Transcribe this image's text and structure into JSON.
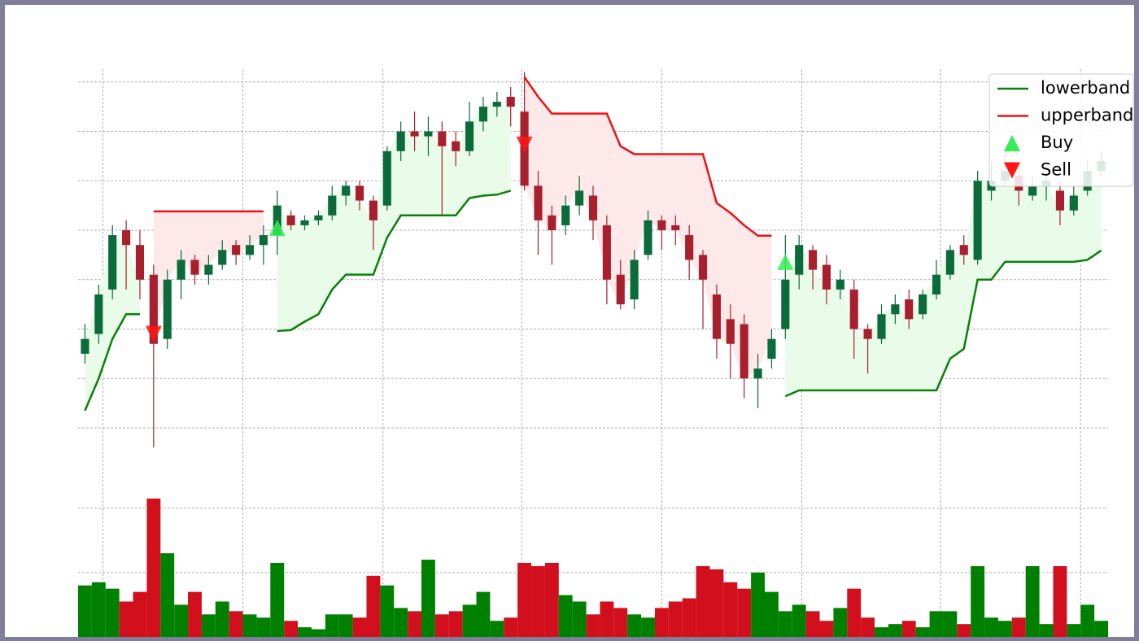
{
  "chart_data": {
    "type": "candlestick",
    "xlim": [
      -0.5,
      74.5
    ],
    "xticks": [
      1.3,
      11.5,
      21.7,
      31.8,
      42,
      52.2,
      62.3,
      72.5
    ],
    "ylim": [
      4.4,
      82.6
    ],
    "yticks": [
      10,
      20,
      30,
      40,
      50,
      60,
      70,
      80
    ],
    "grid": true,
    "legend": "upper right",
    "up_color": "#0b6b3a",
    "down_color": "#a8202d",
    "volume_up_color": "#008000",
    "volume_down_color": "#d20f1c",
    "open": [
      25,
      29,
      38,
      50,
      47,
      41,
      28,
      40,
      44,
      41,
      43,
      47,
      45,
      47,
      49,
      53,
      51,
      52,
      53,
      57,
      59,
      56,
      55,
      66,
      70,
      69,
      70,
      68,
      66,
      72,
      75,
      77,
      74,
      59,
      53,
      51,
      55,
      57,
      51,
      41,
      36,
      45,
      52,
      51,
      49,
      45,
      37,
      32,
      31,
      20,
      24,
      30,
      41,
      46,
      43,
      38,
      38,
      30,
      28,
      33,
      36,
      33,
      37,
      41,
      47,
      44,
      58,
      60,
      61,
      57,
      59,
      58,
      54,
      58,
      62
    ],
    "high": [
      31,
      39,
      51,
      52,
      50,
      43,
      42,
      46,
      45,
      45,
      48,
      48,
      49,
      51,
      58,
      54,
      53,
      54,
      59,
      60,
      60,
      57,
      67,
      72,
      74,
      73,
      72,
      70,
      76,
      77,
      78,
      79,
      82,
      62,
      55,
      57,
      61,
      59,
      53,
      44,
      46,
      54,
      53,
      53,
      51,
      46,
      39,
      35,
      33,
      25,
      30,
      49,
      49,
      47,
      45,
      42,
      40,
      31,
      35,
      37,
      38,
      38,
      44,
      47,
      49,
      62,
      64,
      66,
      63,
      61,
      62,
      60,
      59,
      64,
      66
    ],
    "low": [
      23,
      27,
      36,
      38,
      36,
      6,
      26,
      36,
      39,
      39,
      42,
      43,
      44,
      43,
      45,
      50,
      50,
      51,
      52,
      55,
      54,
      46,
      54,
      64,
      66,
      65,
      53,
      63,
      65,
      70,
      73,
      71,
      58,
      45,
      43,
      49,
      53,
      48,
      35,
      34,
      34,
      44,
      46,
      47,
      40,
      30,
      24,
      20,
      16,
      14,
      22,
      28,
      38,
      38,
      35,
      36,
      24,
      21,
      27,
      31,
      30,
      32,
      36,
      40,
      43,
      43,
      56,
      59,
      55,
      56,
      56,
      51,
      53,
      57,
      61
    ],
    "close": [
      28,
      37,
      49,
      47,
      40,
      27,
      40,
      44,
      41,
      43,
      46,
      45,
      47,
      49,
      55,
      51,
      52,
      53,
      57,
      59,
      56,
      52,
      66,
      70,
      69,
      70,
      67,
      66,
      72,
      75,
      76,
      75,
      59,
      52,
      50,
      55,
      58,
      52,
      40,
      35,
      44,
      52,
      50,
      50,
      44,
      40,
      28,
      27,
      20,
      22,
      28,
      40,
      47,
      42,
      38,
      40,
      30,
      28,
      33,
      35,
      32,
      37,
      41,
      46,
      45,
      60,
      60,
      62,
      58,
      59,
      60,
      54,
      57,
      62,
      64
    ],
    "volume": [
      800,
      850,
      750,
      550,
      700,
      2150,
      1300,
      500,
      700,
      350,
      550,
      400,
      350,
      300,
      1150,
      250,
      150,
      120,
      350,
      350,
      300,
      950,
      800,
      450,
      400,
      1200,
      350,
      400,
      500,
      700,
      250,
      300,
      1150,
      1100,
      1150,
      650,
      550,
      350,
      550,
      450,
      350,
      300,
      450,
      550,
      600,
      1100,
      1050,
      850,
      750,
      1000,
      700,
      400,
      500,
      400,
      250,
      450,
      750,
      300,
      150,
      200,
      250,
      150,
      400,
      400,
      200,
      1100,
      300,
      250,
      300,
      1100,
      200,
      1100,
      200,
      500,
      250
    ],
    "volume_ylim": [
      0,
      2300
    ],
    "volume_yticks": [
      1000,
      2000
    ],
    "series": [
      {
        "name": "lowerband",
        "color": "#0a800a",
        "fill_color": "#e9fbe9",
        "values": [
          13.5,
          20,
          28,
          33,
          33,
          null,
          null,
          null,
          null,
          null,
          null,
          null,
          null,
          null,
          29.6,
          29.8,
          31.5,
          33,
          38,
          41,
          41,
          41,
          48.5,
          53,
          53,
          53,
          53,
          53,
          56.5,
          57,
          57.2,
          58,
          null,
          null,
          null,
          null,
          null,
          null,
          null,
          null,
          null,
          null,
          null,
          null,
          null,
          null,
          null,
          null,
          null,
          null,
          null,
          16.4,
          17.6,
          17.6,
          17.6,
          17.6,
          17.6,
          17.6,
          17.6,
          17.6,
          17.6,
          17.6,
          17.6,
          24,
          26,
          40,
          40,
          43.6,
          43.6,
          43.6,
          43.6,
          43.6,
          43.6,
          44,
          45.9
        ]
      },
      {
        "name": "upperband",
        "color": "#ee1111",
        "fill_color": "#fde9e9",
        "values": [
          null,
          null,
          null,
          null,
          null,
          53.8,
          53.8,
          53.8,
          53.8,
          53.8,
          53.8,
          53.8,
          53.8,
          53.8,
          null,
          null,
          null,
          null,
          null,
          null,
          null,
          null,
          null,
          null,
          null,
          null,
          null,
          null,
          null,
          null,
          null,
          null,
          81,
          77,
          73.6,
          73.6,
          73.6,
          73.6,
          73.6,
          67,
          65.4,
          65.4,
          65.4,
          65.4,
          65.4,
          65.4,
          55.5,
          53.5,
          51,
          48.9,
          48.9,
          null,
          null,
          null,
          null,
          null,
          null,
          null,
          null,
          null,
          null,
          null,
          null,
          null,
          null,
          null,
          null,
          null,
          null,
          null,
          null,
          null,
          null,
          null,
          null
        ]
      }
    ],
    "markers": [
      {
        "name": "Buy",
        "color": "#33ee55",
        "shape": "up",
        "x": [
          14,
          51
        ],
        "values": [
          50.5,
          43.6
        ]
      },
      {
        "name": "Sell",
        "color": "#ff1515",
        "shape": "down",
        "x": [
          5,
          32
        ],
        "values": [
          29,
          67.3
        ]
      }
    ]
  }
}
